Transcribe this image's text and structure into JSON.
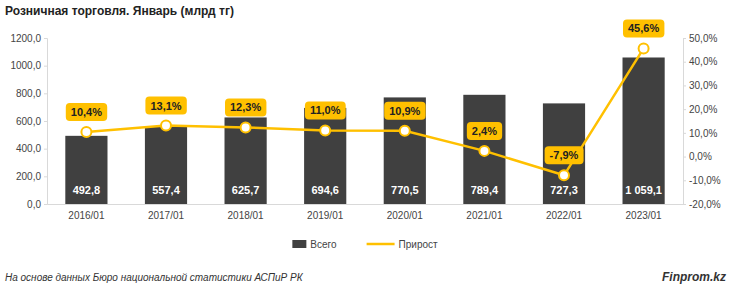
{
  "chart_data": {
    "type": "bar",
    "title": "Розничная торговля. Январь (млрд тг)",
    "categories": [
      "2016/01",
      "2017/01",
      "2018/01",
      "2019/01",
      "2020/01",
      "2021/01",
      "2022/01",
      "2023/01"
    ],
    "series": [
      {
        "name": "Всего",
        "type": "bar",
        "color": "#404040",
        "values": [
          492.8,
          557.4,
          625.7,
          694.6,
          770.5,
          789.4,
          727.3,
          1059.1
        ],
        "value_labels": [
          "492,8",
          "557,4",
          "625,7",
          "694,6",
          "770,5",
          "789,4",
          "727,3",
          "1 059,1"
        ]
      },
      {
        "name": "Прирост",
        "type": "line",
        "axis": "y2",
        "color": "#FFC000",
        "marker": "circle",
        "line_style": "solid",
        "values": [
          10.4,
          13.1,
          12.3,
          11.0,
          10.9,
          2.4,
          -7.9,
          45.6
        ],
        "value_labels": [
          "10,4%",
          "13,1%",
          "12,3%",
          "11,0%",
          "10,9%",
          "2,4%",
          "-7,9%",
          "45,6%"
        ]
      }
    ],
    "ylim": [
      0,
      1200
    ],
    "yticks": [
      {
        "value": 0,
        "label": "0,0"
      },
      {
        "value": 200,
        "label": "200,0"
      },
      {
        "value": 400,
        "label": "400,0"
      },
      {
        "value": 600,
        "label": "600,0"
      },
      {
        "value": 800,
        "label": "800,0"
      },
      {
        "value": 1000,
        "label": "1000,0"
      },
      {
        "value": 1200,
        "label": "1200,0"
      }
    ],
    "y2lim": [
      -20,
      50
    ],
    "y2ticks": [
      {
        "value": -20,
        "label": "-20,0%"
      },
      {
        "value": -10,
        "label": "-10,0%"
      },
      {
        "value": 0,
        "label": "0,0%"
      },
      {
        "value": 10,
        "label": "10,0%"
      },
      {
        "value": 20,
        "label": "20,0%"
      },
      {
        "value": 30,
        "label": "30,0%"
      },
      {
        "value": 40,
        "label": "40,0%"
      },
      {
        "value": 50,
        "label": "50,0%"
      }
    ],
    "grid": false,
    "legend": "bottom",
    "data_labels": true,
    "annotations": [
      "На основе данных Бюро национальной статистики АСПиР РК",
      "Finprom.kz"
    ]
  }
}
